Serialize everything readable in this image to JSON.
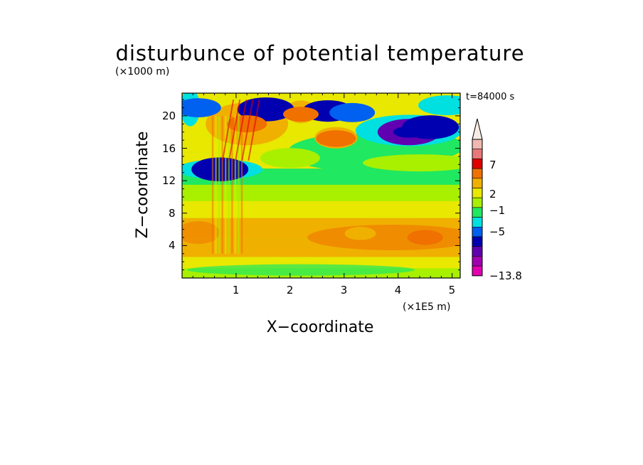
{
  "chart_data": {
    "type": "heatmap",
    "title": "disturbunce of potential temperature",
    "timestamp": "t=84000 s",
    "xlabel": "X−coordinate",
    "ylabel": "Z−coordinate",
    "x_unit": "(×1E5 m)",
    "y_unit": "(×1000 m)",
    "xlim": [
      0,
      5.15
    ],
    "ylim": [
      0,
      22.8
    ],
    "x_ticks": [
      1,
      2,
      3,
      4,
      5
    ],
    "x_tick_labels": [
      "1",
      "2",
      "3",
      "4",
      "5"
    ],
    "y_ticks": [
      4,
      8,
      12,
      16,
      20
    ],
    "y_tick_labels": [
      "4",
      "8",
      "12",
      "16",
      "20"
    ],
    "colorbar": {
      "labels": [
        "7",
        "2",
        "−1",
        "−5",
        "−13.8"
      ],
      "colors": [
        "#f0b8b0",
        "#e87878",
        "#e00000",
        "#f07000",
        "#f0b000",
        "#e8e800",
        "#a8f000",
        "#20e860",
        "#00e0e0",
        "#0060f0",
        "#0000b0",
        "#6000b0",
        "#a000b0",
        "#e000b0"
      ],
      "extend": "max"
    },
    "field_features": [
      {
        "x": 4.2,
        "z": 18.0,
        "value": -6
      },
      {
        "x": 4.6,
        "z": 18.6,
        "value": -5
      },
      {
        "x": 2.7,
        "z": 20.6,
        "value": -4
      },
      {
        "x": 3.15,
        "z": 20.4,
        "value": -3
      },
      {
        "x": 0.7,
        "z": 13.4,
        "value": -5
      },
      {
        "x": 1.55,
        "z": 20.8,
        "value": -5
      },
      {
        "x": 0.3,
        "z": 21.0,
        "value": -3
      },
      {
        "x": 2.85,
        "z": 17.2,
        "value": 4
      },
      {
        "x": 1.2,
        "z": 19.0,
        "value": 4
      },
      {
        "x": 2.2,
        "z": 20.2,
        "value": 3
      },
      {
        "x": 4.5,
        "z": 5.0,
        "value": 3
      },
      {
        "x": 3.3,
        "z": 5.5,
        "value": 2
      }
    ]
  }
}
